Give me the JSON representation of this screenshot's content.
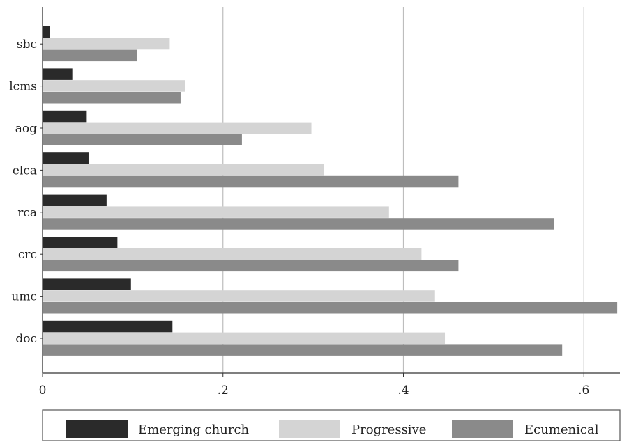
{
  "chart_data": {
    "type": "bar",
    "orientation": "horizontal",
    "title": "",
    "xlabel": "",
    "ylabel": "",
    "categories": [
      "sbc",
      "lcms",
      "aog",
      "elca",
      "rca",
      "crc",
      "umc",
      "doc"
    ],
    "series": [
      {
        "name": "Emerging church",
        "color": "#2a2a2a",
        "values": [
          0.008,
          0.033,
          0.049,
          0.051,
          0.071,
          0.083,
          0.098,
          0.144
        ]
      },
      {
        "name": "Progressive",
        "color": "#d4d4d4",
        "values": [
          0.141,
          0.158,
          0.298,
          0.312,
          0.384,
          0.42,
          0.435,
          0.446
        ]
      },
      {
        "name": "Ecumenical",
        "color": "#8a8a8a",
        "values": [
          0.105,
          0.153,
          0.221,
          0.461,
          0.567,
          0.461,
          0.637,
          0.576
        ]
      }
    ],
    "xlim": [
      0,
      0.64
    ],
    "x_ticks": [
      0,
      0.2,
      0.4,
      0.6
    ],
    "x_tick_labels": [
      "0",
      ".2",
      ".4",
      ".6"
    ],
    "grid": "vertical",
    "legend_position": "bottom"
  }
}
